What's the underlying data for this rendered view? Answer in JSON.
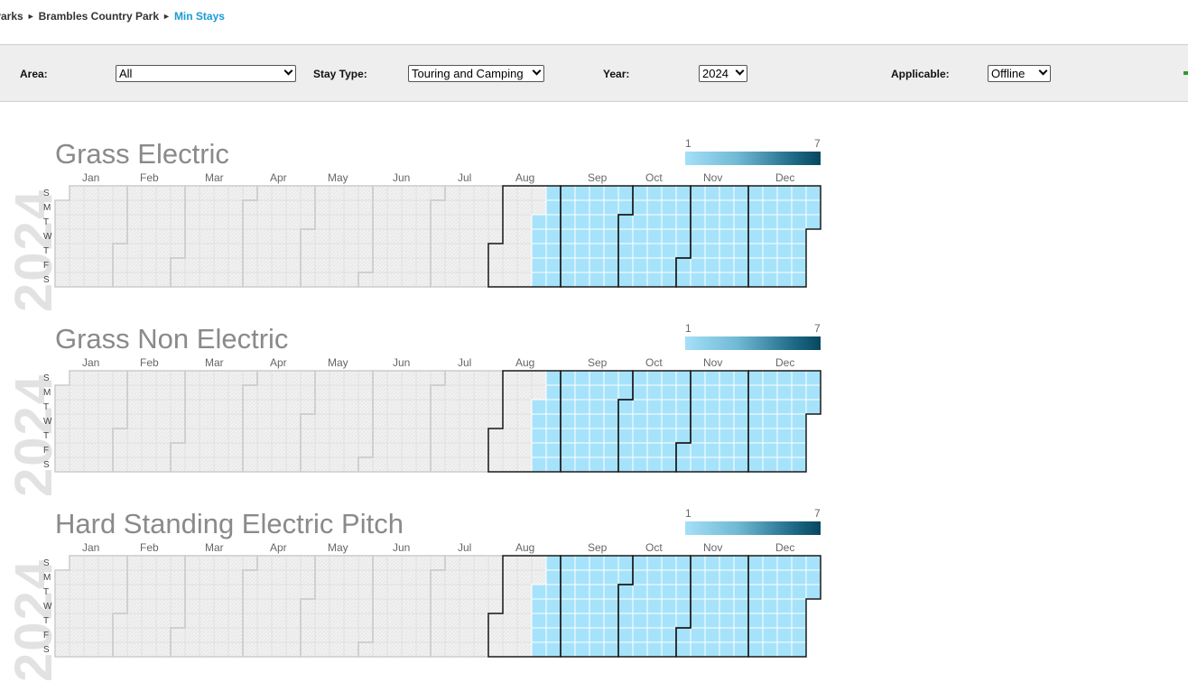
{
  "breadcrumb": {
    "items": [
      "Parks",
      "Brambles Country Park"
    ],
    "current": "Min Stays",
    "separator": "►"
  },
  "filters": {
    "area": {
      "label": "Area:",
      "value": "All"
    },
    "stay_type": {
      "label": "Stay Type:",
      "value": "Touring and Camping"
    },
    "year": {
      "label": "Year:",
      "value": "2024"
    },
    "applicable": {
      "label": "Applicable:",
      "value": "Offline"
    },
    "add_icon": "plus-icon"
  },
  "legend": {
    "min": "1",
    "max": "7"
  },
  "months": [
    "Jan",
    "Feb",
    "Mar",
    "Apr",
    "May",
    "Jun",
    "Jul",
    "Aug",
    "Sep",
    "Oct",
    "Nov",
    "Dec"
  ],
  "days": [
    "S",
    "M",
    "T",
    "W",
    "T",
    "F",
    "S"
  ],
  "colors": {
    "inactive_cell": "#f2f2f2",
    "active_cell": "#a6e3fb",
    "month_border": "#1a1a1a",
    "inactive_border": "#cccccc",
    "title": "#8a8a8a"
  },
  "calendars": [
    {
      "title": "Grass Electric",
      "year": "2024",
      "active_from": "2024-08-20"
    },
    {
      "title": "Grass Non Electric",
      "year": "2024",
      "active_from": "2024-08-20"
    },
    {
      "title": "Hard Standing Electric Pitch",
      "year": "2024",
      "active_from": "2024-08-20"
    }
  ]
}
